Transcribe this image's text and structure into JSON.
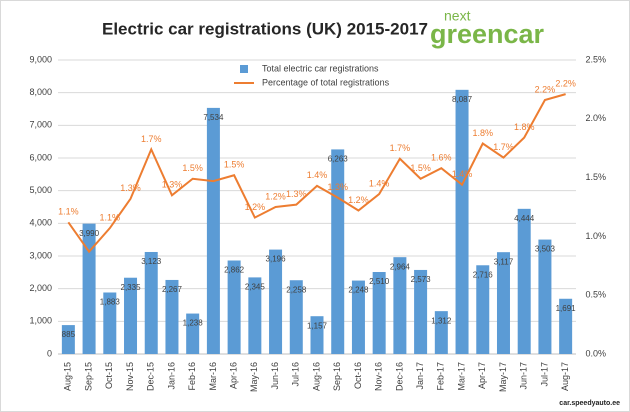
{
  "chart_data": {
    "type": "bar-line",
    "title": "Electric car registrations (UK) 2015-2017",
    "categories": [
      "Aug-15",
      "Sep-15",
      "Oct-15",
      "Nov-15",
      "Dec-15",
      "Jan-16",
      "Feb-16",
      "Mar-16",
      "Apr-16",
      "May-16",
      "Jun-16",
      "Jul-16",
      "Aug-16",
      "Sep-16",
      "Oct-16",
      "Nov-16",
      "Dec-16",
      "Jan-17",
      "Feb-17",
      "Mar-17",
      "Apr-17",
      "May-17",
      "Jun-17",
      "Jul-17",
      "Aug-17"
    ],
    "series": [
      {
        "name": "Total electric car registrations",
        "type": "bar",
        "color": "#5b9bd5",
        "values": [
          885,
          3990,
          1883,
          2335,
          3123,
          2267,
          1238,
          7534,
          2862,
          2345,
          3196,
          2258,
          1157,
          6263,
          2248,
          2510,
          2964,
          2573,
          1312,
          8087,
          2716,
          3117,
          4444,
          3503,
          1691
        ],
        "value_labels": [
          "885",
          "3,990",
          "1,883",
          "2,335",
          "3,123",
          "2,267",
          "1,238",
          "7,534",
          "2,862",
          "2,345",
          "3,196",
          "2,258",
          "1,157",
          "6,263",
          "2,248",
          "2,510",
          "2,964",
          "2,573",
          "1,312",
          "8,087",
          "2,716",
          "3,117",
          "4,444",
          "3,503",
          "1,691"
        ]
      },
      {
        "name": "Percentage of total registrations",
        "type": "line",
        "axis": "y2",
        "color": "#ed7d31",
        "values": [
          1.12,
          0.87,
          1.07,
          1.32,
          1.74,
          1.35,
          1.49,
          1.47,
          1.52,
          1.16,
          1.25,
          1.27,
          1.43,
          1.33,
          1.22,
          1.36,
          1.66,
          1.49,
          1.58,
          1.44,
          1.79,
          1.67,
          1.84,
          2.16,
          2.21
        ],
        "value_labels": [
          "1.1%",
          null,
          "1.1%",
          "1.3%",
          "1.7%",
          "1.3%",
          "1.5%",
          null,
          "1.5%",
          "1.2%",
          "1.2%",
          "1.3%",
          "1.4%",
          "1.3%",
          "1.2%",
          "1.4%",
          "1.7%",
          "1.5%",
          "1.6%",
          "1.4%",
          "1.8%",
          "1.7%",
          "1.8%",
          "2.2%",
          "2.2%"
        ]
      }
    ],
    "ylim": [
      0,
      9000
    ],
    "yticks": [
      0,
      {
        "value": 1000,
        "label": "1,000"
      },
      {
        "value": 2000,
        "label": "2,000"
      },
      {
        "value": 3000,
        "label": "3,000"
      },
      {
        "value": 4000,
        "label": "4,000"
      },
      {
        "value": 5000,
        "label": "5,000"
      },
      {
        "value": 6000,
        "label": "6,000"
      },
      {
        "value": 7000,
        "label": "7,000"
      },
      {
        "value": 8000,
        "label": "8,000"
      },
      {
        "value": 9000,
        "label": "9,000"
      }
    ],
    "y2lim": [
      0,
      2.5
    ],
    "y2ticks": [
      {
        "value": 0,
        "label": "0.0%"
      },
      {
        "value": 0.5,
        "label": "0.5%"
      },
      {
        "value": 1,
        "label": "1.0%"
      },
      {
        "value": 1.5,
        "label": "1.5%"
      },
      {
        "value": 2,
        "label": "2.0%"
      },
      {
        "value": 2.5,
        "label": "2.5%"
      }
    ],
    "grid": true,
    "legend": "top-center"
  },
  "branding": {
    "logo_top": "next",
    "logo_main": "greencar",
    "watermark": "car.speedyauto.ee"
  }
}
